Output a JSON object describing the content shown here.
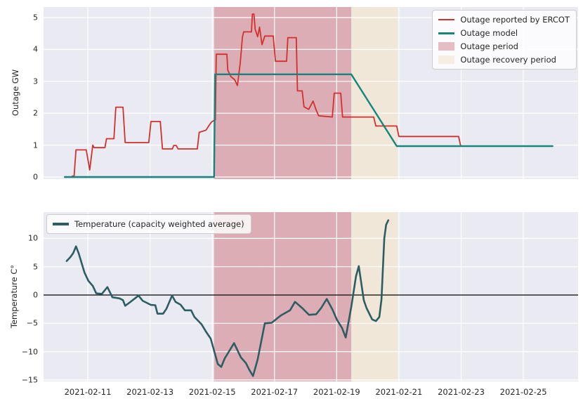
{
  "figure": {
    "bg": "#ffffff",
    "plot_bg": "#eaeaf2",
    "grid_color": "#ffffff",
    "text_color": "#262626"
  },
  "x_axis": {
    "tick_days": [
      0,
      2,
      4,
      6,
      8,
      10,
      12,
      14
    ],
    "tick_labels": [
      "2021-02-11",
      "2021-02-13",
      "2021-02-15",
      "2021-02-17",
      "2021-02-19",
      "2021-02-21",
      "2021-02-23",
      "2021-02-25"
    ]
  },
  "bands": [
    {
      "name": "Outage period",
      "start_day": 4.06,
      "end_day": 8.47,
      "color": "#dcadb5"
    },
    {
      "name": "Outage recovery period",
      "start_day": 8.47,
      "end_day": 9.95,
      "color": "#f0e7d8"
    }
  ],
  "chart_data": [
    {
      "type": "line",
      "ylabel": "Outage GW",
      "xlim_days": [
        -1.423,
        15.76
      ],
      "ylim": [
        -0.066,
        5.33
      ],
      "yticks": [
        0,
        1,
        2,
        3,
        4,
        5
      ],
      "grid": true,
      "zero_line": false,
      "legend": {
        "position": "upper right",
        "items": [
          {
            "label": "Outage reported by ERCOT",
            "swatch": "line",
            "color": "#d2302c",
            "lw": 2
          },
          {
            "label": "Outage model",
            "swatch": "line",
            "color": "#17837d",
            "lw": 3
          },
          {
            "label": "Outage period",
            "swatch": "patch",
            "color": "#e7bdc5",
            "lw": 0
          },
          {
            "label": "Outage recovery period",
            "swatch": "patch",
            "color": "#f5eee1",
            "lw": 0
          }
        ]
      },
      "series": [
        {
          "name": "Outage reported by ERCOT",
          "color": "#d2302c",
          "width": 1.8,
          "points": [
            [
              -0.5,
              0.03
            ],
            [
              -0.44,
              0.03
            ],
            [
              -0.38,
              0.85
            ],
            [
              -0.05,
              0.85
            ],
            [
              0.06,
              0.22
            ],
            [
              0.16,
              1.0
            ],
            [
              0.2,
              0.92
            ],
            [
              0.55,
              0.92
            ],
            [
              0.6,
              1.2
            ],
            [
              0.84,
              1.2
            ],
            [
              0.9,
              2.19
            ],
            [
              1.13,
              2.19
            ],
            [
              1.2,
              1.08
            ],
            [
              1.96,
              1.08
            ],
            [
              2.03,
              1.74
            ],
            [
              2.33,
              1.74
            ],
            [
              2.4,
              0.88
            ],
            [
              2.72,
              0.88
            ],
            [
              2.76,
              0.99
            ],
            [
              2.84,
              0.99
            ],
            [
              2.9,
              0.88
            ],
            [
              3.52,
              0.88
            ],
            [
              3.58,
              1.4
            ],
            [
              3.8,
              1.47
            ],
            [
              3.9,
              1.62
            ],
            [
              3.98,
              1.73
            ],
            [
              4.1,
              1.8
            ],
            [
              4.13,
              3.85
            ],
            [
              4.47,
              3.85
            ],
            [
              4.5,
              3.35
            ],
            [
              4.6,
              3.15
            ],
            [
              4.72,
              3.05
            ],
            [
              4.81,
              2.87
            ],
            [
              4.9,
              3.57
            ],
            [
              4.97,
              4.38
            ],
            [
              5.01,
              4.55
            ],
            [
              5.26,
              4.55
            ],
            [
              5.29,
              5.11
            ],
            [
              5.34,
              5.11
            ],
            [
              5.38,
              4.63
            ],
            [
              5.46,
              4.4
            ],
            [
              5.52,
              4.7
            ],
            [
              5.6,
              4.15
            ],
            [
              5.69,
              4.42
            ],
            [
              5.96,
              4.42
            ],
            [
              6.03,
              3.63
            ],
            [
              6.39,
              3.63
            ],
            [
              6.43,
              4.37
            ],
            [
              6.7,
              4.37
            ],
            [
              6.74,
              2.7
            ],
            [
              6.89,
              2.7
            ],
            [
              6.95,
              2.2
            ],
            [
              7.1,
              2.12
            ],
            [
              7.24,
              2.38
            ],
            [
              7.34,
              2.1
            ],
            [
              7.42,
              1.92
            ],
            [
              7.86,
              1.88
            ],
            [
              7.92,
              2.63
            ],
            [
              8.13,
              2.63
            ],
            [
              8.19,
              1.88
            ],
            [
              9.19,
              1.88
            ],
            [
              9.26,
              1.6
            ],
            [
              9.93,
              1.6
            ],
            [
              10.0,
              1.27
            ],
            [
              11.92,
              1.27
            ],
            [
              11.98,
              1.0
            ]
          ]
        },
        {
          "name": "Outage model",
          "color": "#17837d",
          "width": 2.4,
          "points": [
            [
              -0.74,
              0.0
            ],
            [
              4.06,
              0.0
            ],
            [
              4.09,
              3.22
            ],
            [
              8.47,
              3.22
            ],
            [
              9.93,
              0.97
            ],
            [
              14.94,
              0.97
            ]
          ]
        }
      ]
    },
    {
      "type": "line",
      "ylabel": "Temperature C°",
      "xlim_days": [
        -1.423,
        15.76
      ],
      "ylim": [
        -15.26,
        14.64
      ],
      "yticks": [
        10,
        5,
        0,
        -5,
        -10,
        -15
      ],
      "grid": true,
      "zero_line": true,
      "legend": {
        "position": "upper left",
        "items": [
          {
            "label": "Temperature (capacity weighted average)",
            "swatch": "line",
            "color": "#2c5d63",
            "lw": 4
          }
        ]
      },
      "series": [
        {
          "name": "Temperature (capacity weighted average)",
          "color": "#2c5d63",
          "width": 2.6,
          "points": [
            [
              -0.68,
              6.0
            ],
            [
              -0.56,
              6.7
            ],
            [
              -0.47,
              7.4
            ],
            [
              -0.38,
              8.6
            ],
            [
              -0.29,
              7.3
            ],
            [
              -0.11,
              4.0
            ],
            [
              0.02,
              2.5
            ],
            [
              0.16,
              1.6
            ],
            [
              0.27,
              0.3
            ],
            [
              0.45,
              0.2
            ],
            [
              0.63,
              1.4
            ],
            [
              0.79,
              -0.4
            ],
            [
              1.02,
              -0.6
            ],
            [
              1.13,
              -0.9
            ],
            [
              1.2,
              -1.9
            ],
            [
              1.35,
              -1.3
            ],
            [
              1.63,
              -0.1
            ],
            [
              1.76,
              -1.0
            ],
            [
              2.03,
              -1.75
            ],
            [
              2.17,
              -1.8
            ],
            [
              2.24,
              -3.3
            ],
            [
              2.42,
              -3.3
            ],
            [
              2.53,
              -2.4
            ],
            [
              2.71,
              -0.1
            ],
            [
              2.82,
              -1.2
            ],
            [
              2.98,
              -1.7
            ],
            [
              3.12,
              -2.7
            ],
            [
              3.32,
              -2.7
            ],
            [
              3.43,
              -3.9
            ],
            [
              3.66,
              -5.2
            ],
            [
              3.79,
              -6.4
            ],
            [
              3.95,
              -7.7
            ],
            [
              4.18,
              -12.2
            ],
            [
              4.29,
              -12.7
            ],
            [
              4.4,
              -11.2
            ],
            [
              4.7,
              -8.5
            ],
            [
              4.92,
              -11.0
            ],
            [
              5.08,
              -12.0
            ],
            [
              5.19,
              -13.2
            ],
            [
              5.31,
              -14.3
            ],
            [
              5.46,
              -11.4
            ],
            [
              5.6,
              -7.5
            ],
            [
              5.69,
              -5.0
            ],
            [
              5.91,
              -4.9
            ],
            [
              6.21,
              -3.6
            ],
            [
              6.5,
              -2.7
            ],
            [
              6.66,
              -1.2
            ],
            [
              6.89,
              -2.3
            ],
            [
              7.11,
              -3.5
            ],
            [
              7.34,
              -3.4
            ],
            [
              7.5,
              -2.3
            ],
            [
              7.68,
              -0.7
            ],
            [
              7.86,
              -2.5
            ],
            [
              8.01,
              -4.4
            ],
            [
              8.17,
              -5.8
            ],
            [
              8.29,
              -7.5
            ],
            [
              8.47,
              -2.1
            ],
            [
              8.62,
              3.3
            ],
            [
              8.71,
              5.1
            ],
            [
              8.87,
              -0.9
            ],
            [
              8.96,
              -2.3
            ],
            [
              9.14,
              -4.3
            ],
            [
              9.26,
              -4.6
            ],
            [
              9.37,
              -3.9
            ],
            [
              9.44,
              -0.8
            ],
            [
              9.53,
              10.0
            ],
            [
              9.59,
              12.4
            ],
            [
              9.66,
              13.2
            ]
          ]
        }
      ]
    }
  ]
}
